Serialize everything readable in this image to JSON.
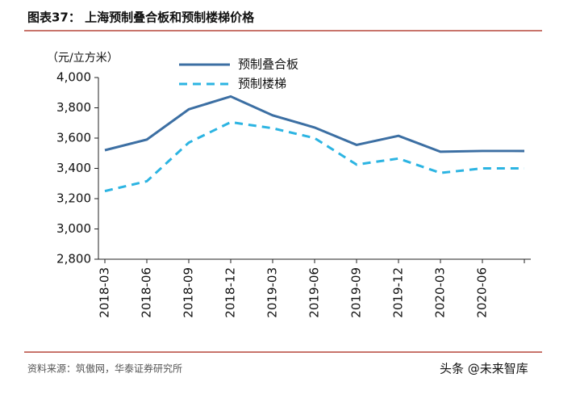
{
  "chart_data": {
    "type": "line",
    "title": "图表37：  上海预制叠合板和预制楼梯价格",
    "y_label": "（元/立方米）",
    "source": "资料来源：筑傲网，华泰证券研究所",
    "watermark": "头条 @未来智库",
    "categories": [
      "2018-03",
      "2018-06",
      "2018-09",
      "2018-12",
      "2019-03",
      "2019-06",
      "2019-09",
      "2019-12",
      "2020-03",
      "2020-06",
      null
    ],
    "series": [
      {
        "name": "预制叠合板",
        "color": "#3c6fa3",
        "dash": false,
        "values": [
          3520,
          3590,
          3790,
          3875,
          3750,
          3670,
          3555,
          3615,
          3510,
          3515,
          3515
        ]
      },
      {
        "name": "预制楼梯",
        "color": "#2cb4e2",
        "dash": true,
        "values": [
          3250,
          3315,
          3570,
          3705,
          3665,
          3600,
          3425,
          3465,
          3370,
          3400,
          3400
        ]
      }
    ],
    "ylim": [
      2800,
      4000
    ],
    "yticks": [
      {
        "value": 2800,
        "label": "2,800"
      },
      {
        "value": 3000,
        "label": "3,000"
      },
      {
        "value": 3200,
        "label": "3,200"
      },
      {
        "value": 3400,
        "label": "3,400"
      },
      {
        "value": 3600,
        "label": "3,600"
      },
      {
        "value": 3800,
        "label": "3,800"
      },
      {
        "value": 4000,
        "label": "4,000"
      }
    ],
    "legend": "top"
  }
}
